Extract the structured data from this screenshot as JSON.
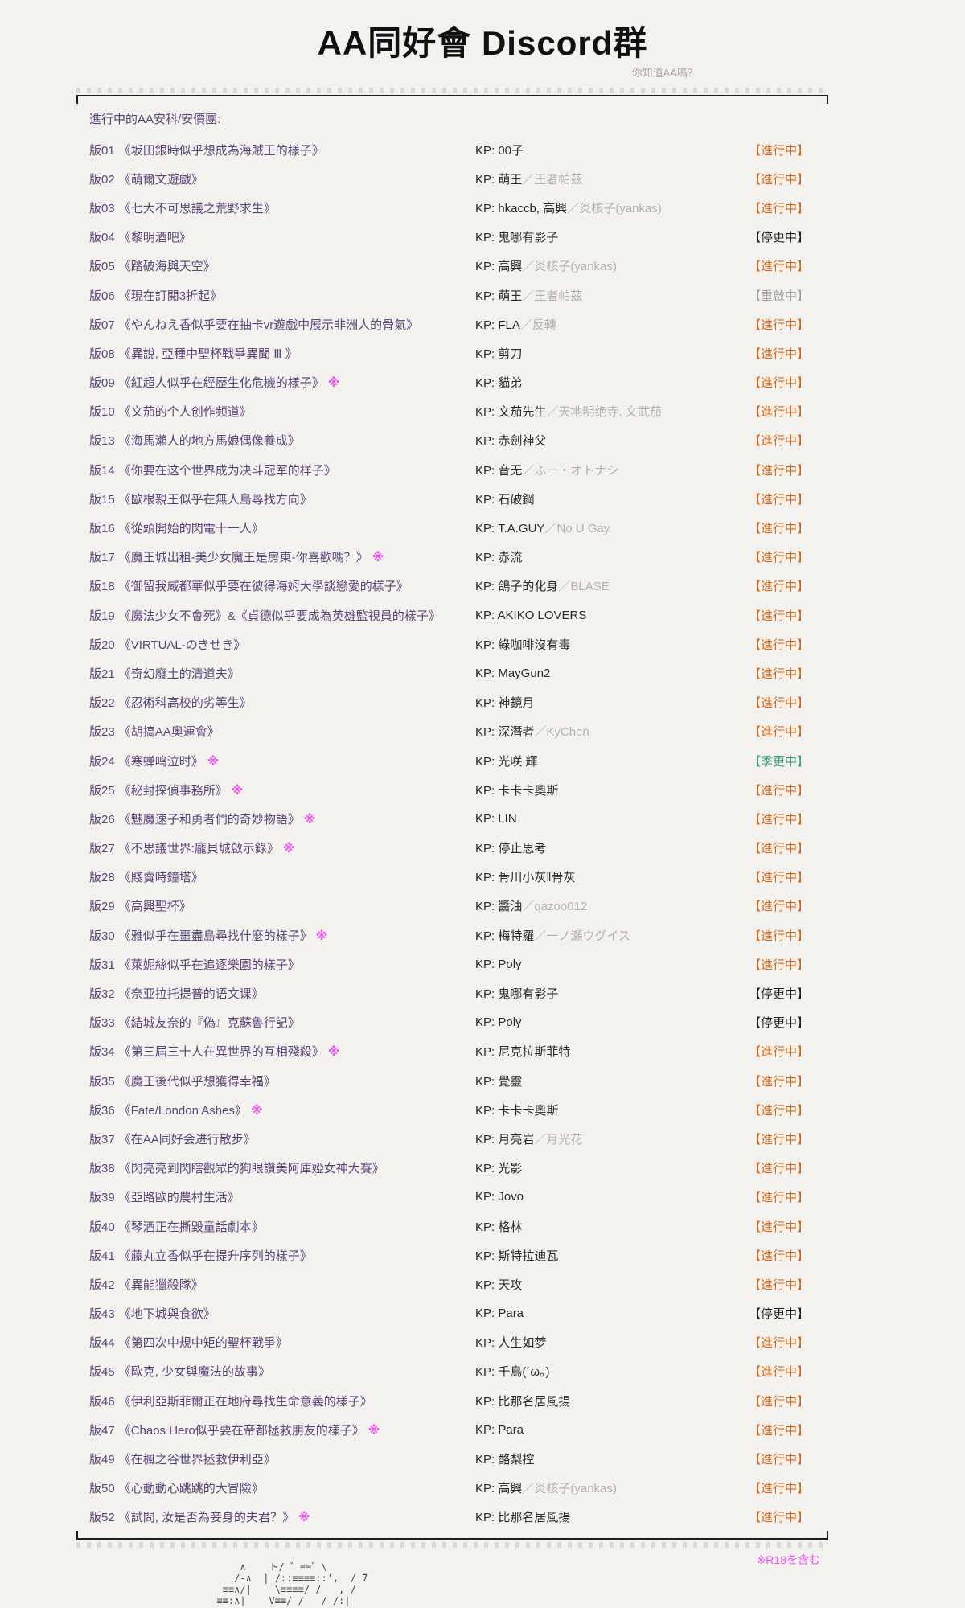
{
  "page": {
    "title": "AA同好會 Discord群",
    "subtitle": "你知道AA嗎？",
    "list_header": "進行中的AA安科/安價團:",
    "kp_prefix": "KP: ",
    "slash": "／",
    "r18_mark": "※",
    "footer_note": "※R18を含む"
  },
  "colors": {
    "bg": "#f3f2ef",
    "text": "#2b2b2b",
    "purple": "#5e4377",
    "gray2": "#b5b1ac",
    "subtitle": "#a9a49e",
    "ongoing": "#d2691e",
    "paused": "#1f1f1f",
    "restart": "#a3a09b",
    "seasonal": "#3ba172",
    "magenta": "#ee4fee",
    "frame": "#1c1c1c"
  },
  "rows": [
    {
      "num": "版01",
      "title": "《坂田銀時似乎想成為海賊王的樣子》",
      "r18": false,
      "kp": "00子",
      "kp2": "",
      "status": "【進行中】",
      "status_type": "ongoing"
    },
    {
      "num": "版02",
      "title": "《萌爾文遊戲》",
      "r18": false,
      "kp": "萌王",
      "kp2": "王者帕茲",
      "status": "【進行中】",
      "status_type": "ongoing"
    },
    {
      "num": "版03",
      "title": "《七大不可思議之荒野求生》",
      "r18": false,
      "kp": "hkaccb, 高興",
      "kp2": "炎核子(yankas)",
      "status": "【進行中】",
      "status_type": "ongoing"
    },
    {
      "num": "版04",
      "title": "《黎明酒吧》",
      "r18": false,
      "kp": "鬼哪有影子",
      "kp2": "",
      "status": "【停更中】",
      "status_type": "paused"
    },
    {
      "num": "版05",
      "title": "《踏破海與天空》",
      "r18": false,
      "kp": "高興",
      "kp2": "炎核子(yankas)",
      "status": "【進行中】",
      "status_type": "ongoing"
    },
    {
      "num": "版06",
      "title": "《現在訂閱3折起》",
      "r18": false,
      "kp": "萌王",
      "kp2": "王者帕茲",
      "status": "【重啟中】",
      "status_type": "restart"
    },
    {
      "num": "版07",
      "title": "《やんねえ香似乎要在抽卡vr遊戲中展示非洲人的骨氣》",
      "r18": false,
      "kp": "FLA",
      "kp2": "反轉",
      "status": "【進行中】",
      "status_type": "ongoing"
    },
    {
      "num": "版08",
      "title": "《異說, 亞種中聖杯戰爭異聞 Ⅲ 》",
      "r18": false,
      "kp": "剪刀",
      "kp2": "",
      "status": "【進行中】",
      "status_type": "ongoing"
    },
    {
      "num": "版09",
      "title": "《紅超人似乎在經歷生化危機的樣子》",
      "r18": true,
      "kp": "貓弟",
      "kp2": "",
      "status": "【進行中】",
      "status_type": "ongoing"
    },
    {
      "num": "版10",
      "title": "《文茄的个人创作频道》",
      "r18": false,
      "kp": "文茄先生",
      "kp2": "天地明绝寺. 文武茄",
      "status": "【進行中】",
      "status_type": "ongoing"
    },
    {
      "num": "版13",
      "title": "《海馬瀨人的地方馬娘偶像養成》",
      "r18": false,
      "kp": "赤劍神父",
      "kp2": "",
      "status": "【進行中】",
      "status_type": "ongoing"
    },
    {
      "num": "版14",
      "title": "《你要在这个世界成为决斗冠军的样子》",
      "r18": false,
      "kp": "音无",
      "kp2": "ふー・オトナシ",
      "status": "【進行中】",
      "status_type": "ongoing"
    },
    {
      "num": "版15",
      "title": "《歐根親王似乎在無人島尋找方向》",
      "r18": false,
      "kp": "石破鋼",
      "kp2": "",
      "status": "【進行中】",
      "status_type": "ongoing"
    },
    {
      "num": "版16",
      "title": "《從頭開始的閃電十一人》",
      "r18": false,
      "kp": "T.A.GUY",
      "kp2": "No U Gay",
      "status": "【進行中】",
      "status_type": "ongoing"
    },
    {
      "num": "版17",
      "title": "《魔王城出租-美少女魔王是房東-你喜歡嗎？》",
      "r18": true,
      "kp": "赤流",
      "kp2": "",
      "status": "【進行中】",
      "status_type": "ongoing"
    },
    {
      "num": "版18",
      "title": "《御留我威都華似乎要在彼得海姆大學談戀愛的樣子》",
      "r18": false,
      "kp": "鴿子的化身",
      "kp2": "BLASE",
      "status": "【進行中】",
      "status_type": "ongoing"
    },
    {
      "num": "版19",
      "title": "《魔法少女不會死》&《貞德似乎要成為英雄監視員的樣子》",
      "r18": false,
      "kp": "AKIKO LOVERS",
      "kp2": "",
      "status": "【進行中】",
      "status_type": "ongoing"
    },
    {
      "num": "版20",
      "title": "《VIRTUAL-のきせき》",
      "r18": false,
      "kp": "綠咖啡沒有毒",
      "kp2": "",
      "status": "【進行中】",
      "status_type": "ongoing"
    },
    {
      "num": "版21",
      "title": "《奇幻廢土的清道夫》",
      "r18": false,
      "kp": "MayGun2",
      "kp2": "",
      "status": "【進行中】",
      "status_type": "ongoing"
    },
    {
      "num": "版22",
      "title": "《忍術科高校的劣等生》",
      "r18": false,
      "kp": "神鏡月",
      "kp2": "",
      "status": "【進行中】",
      "status_type": "ongoing"
    },
    {
      "num": "版23",
      "title": "《胡搞AA奧運會》",
      "r18": false,
      "kp": "深潛者",
      "kp2": "KyChen",
      "status": "【進行中】",
      "status_type": "ongoing"
    },
    {
      "num": "版24",
      "title": "《寒蝉鸣泣时》",
      "r18": true,
      "kp": "光咲 輝",
      "kp2": "",
      "status": "【季更中】",
      "status_type": "seasonal"
    },
    {
      "num": "版25",
      "title": "《秘封探偵事務所》",
      "r18": true,
      "kp": "卡卡卡奧斯",
      "kp2": "",
      "status": "【進行中】",
      "status_type": "ongoing"
    },
    {
      "num": "版26",
      "title": "《魅魔速子和勇者們的奇妙物語》",
      "r18": true,
      "kp": "LIN",
      "kp2": "",
      "status": "【進行中】",
      "status_type": "ongoing"
    },
    {
      "num": "版27",
      "title": "《不思議世界:龐貝城啟示錄》",
      "r18": true,
      "kp": "停止思考",
      "kp2": "",
      "status": "【進行中】",
      "status_type": "ongoing"
    },
    {
      "num": "版28",
      "title": "《賤賣時鐘塔》",
      "r18": false,
      "kp": "骨川小灰‖骨灰",
      "kp2": "",
      "status": "【進行中】",
      "status_type": "ongoing"
    },
    {
      "num": "版29",
      "title": "《高興聖杯》",
      "r18": false,
      "kp": "醬油",
      "kp2": "qazoo012",
      "status": "【進行中】",
      "status_type": "ongoing"
    },
    {
      "num": "版30",
      "title": "《雅似乎在噩盡島尋找什麼的樣子》",
      "r18": true,
      "kp": "梅特羅",
      "kp2": "一ノ瀬ウグイス",
      "status": "【進行中】",
      "status_type": "ongoing"
    },
    {
      "num": "版31",
      "title": "《萊妮絲似乎在追逐樂園的樣子》",
      "r18": false,
      "kp": "Poly",
      "kp2": "",
      "status": "【進行中】",
      "status_type": "ongoing"
    },
    {
      "num": "版32",
      "title": "《奈亚拉托提普的语文课》",
      "r18": false,
      "kp": "鬼哪有影子",
      "kp2": "",
      "status": "【停更中】",
      "status_type": "paused"
    },
    {
      "num": "版33",
      "title": "《結城友奈的『偽』克蘇魯行記》",
      "r18": false,
      "kp": "Poly",
      "kp2": "",
      "status": "【停更中】",
      "status_type": "paused"
    },
    {
      "num": "版34",
      "title": "《第三屆三十人在異世界的互相殘殺》",
      "r18": true,
      "kp": "尼克拉斯菲特",
      "kp2": "",
      "status": "【進行中】",
      "status_type": "ongoing"
    },
    {
      "num": "版35",
      "title": "《魔王後代似乎想獲得幸福》",
      "r18": false,
      "kp": "覺靈",
      "kp2": "",
      "status": "【進行中】",
      "status_type": "ongoing"
    },
    {
      "num": "版36",
      "title": "《Fate/London Ashes》",
      "r18": true,
      "kp": "卡卡卡奧斯",
      "kp2": "",
      "status": "【進行中】",
      "status_type": "ongoing"
    },
    {
      "num": "版37",
      "title": "《在AA同好会进行散步》",
      "r18": false,
      "kp": "月亮岩",
      "kp2": "月光花",
      "status": "【進行中】",
      "status_type": "ongoing"
    },
    {
      "num": "版38",
      "title": "《閃亮亮到閃瞎觀眾的狗眼讚美阿庫婭女神大賽》",
      "r18": false,
      "kp": "光影",
      "kp2": "",
      "status": "【進行中】",
      "status_type": "ongoing"
    },
    {
      "num": "版39",
      "title": "《亞路歐的農村生活》",
      "r18": false,
      "kp": "Jovo",
      "kp2": "",
      "status": "【進行中】",
      "status_type": "ongoing"
    },
    {
      "num": "版40",
      "title": "《琴酒正在撕毀童話劇本》",
      "r18": false,
      "kp": "格林",
      "kp2": "",
      "status": "【進行中】",
      "status_type": "ongoing"
    },
    {
      "num": "版41",
      "title": "《藤丸立香似乎在提升序列的樣子》",
      "r18": false,
      "kp": "斯特拉迪瓦",
      "kp2": "",
      "status": "【進行中】",
      "status_type": "ongoing"
    },
    {
      "num": "版42",
      "title": "《異能獵殺隊》",
      "r18": false,
      "kp": "天攻",
      "kp2": "",
      "status": "【進行中】",
      "status_type": "ongoing"
    },
    {
      "num": "版43",
      "title": "《地下城與食欲》",
      "r18": false,
      "kp": "Para",
      "kp2": "",
      "status": "【停更中】",
      "status_type": "paused"
    },
    {
      "num": "版44",
      "title": "《第四次中規中矩的聖杯戰爭》",
      "r18": false,
      "kp": "人生如梦",
      "kp2": "",
      "status": "【進行中】",
      "status_type": "ongoing"
    },
    {
      "num": "版45",
      "title": "《歐克, 少女與魔法的故事》",
      "r18": false,
      "kp": "千鳥(´ω。)",
      "kp2": "",
      "status": "【進行中】",
      "status_type": "ongoing"
    },
    {
      "num": "版46",
      "title": "《伊利亞斯菲爾正在地府尋找生命意義的樣子》",
      "r18": false,
      "kp": "比那名居風揚",
      "kp2": "",
      "status": "【進行中】",
      "status_type": "ongoing"
    },
    {
      "num": "版47",
      "title": "《Chaos Hero似乎要在帝都拯救朋友的樣子》",
      "r18": true,
      "kp": "Para",
      "kp2": "",
      "status": "【進行中】",
      "status_type": "ongoing"
    },
    {
      "num": "版49",
      "title": "《在楓之谷世界拯救伊利亞》",
      "r18": false,
      "kp": "酪梨控",
      "kp2": "",
      "status": "【進行中】",
      "status_type": "ongoing"
    },
    {
      "num": "版50",
      "title": "《心動動心跳跳的大冒險》",
      "r18": false,
      "kp": "高興",
      "kp2": "炎核子(yankas)",
      "status": "【進行中】",
      "status_type": "ongoing"
    },
    {
      "num": "版52",
      "title": "《試問, 汝是否為妾身的夫君？》",
      "r18": true,
      "kp": "比那名居風揚",
      "kp2": "",
      "status": "【進行中】",
      "status_type": "ongoing"
    }
  ],
  "ascii_art": [
    "      ∧    ト/ ゛≡≡゛\\      ",
    "     /-∧  | /::≡≡≡≡::',  / ̄7",
    "   ≡≡∧/|    \\≡≡≡≡/ /   , /|",
    "  ≡≡:∧|    V≡≡/ /   / /:|"
  ]
}
